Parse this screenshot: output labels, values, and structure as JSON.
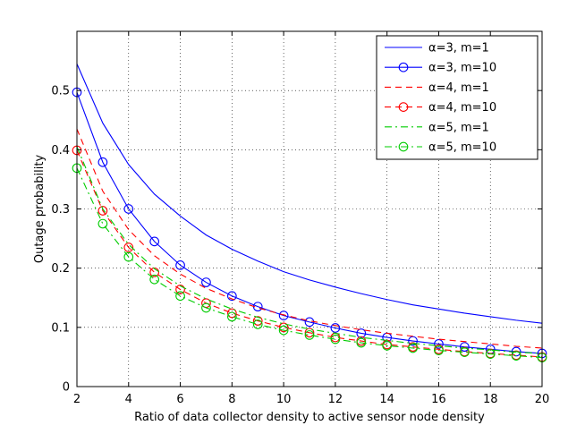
{
  "chart_data": {
    "type": "line",
    "title": "",
    "xlabel": "Ratio of data collector density to active sensor node density",
    "ylabel": "Outage probability",
    "xlim": [
      2,
      20
    ],
    "ylim": [
      0,
      0.6
    ],
    "xticks": [
      "2",
      "4",
      "6",
      "8",
      "10",
      "12",
      "14",
      "16",
      "18",
      "20"
    ],
    "yticks": [
      "0",
      "0.1",
      "0.2",
      "0.3",
      "0.4",
      "0.5"
    ],
    "grid": true,
    "legend_position": "top-right",
    "x": [
      2,
      3,
      4,
      5,
      6,
      7,
      8,
      9,
      10,
      11,
      12,
      13,
      14,
      15,
      16,
      17,
      18,
      19,
      20
    ],
    "series": [
      {
        "name": "α=3, m=1",
        "color": "#0000ff",
        "line": "solid",
        "marker": "none",
        "values": [
          0.545,
          0.445,
          0.375,
          0.325,
          0.288,
          0.256,
          0.232,
          0.212,
          0.194,
          0.18,
          0.168,
          0.157,
          0.147,
          0.138,
          0.131,
          0.124,
          0.118,
          0.112,
          0.107
        ]
      },
      {
        "name": "α=3, m=10",
        "color": "#0000ff",
        "line": "solid",
        "marker": "circle",
        "values": [
          0.497,
          0.379,
          0.3,
          0.245,
          0.205,
          0.176,
          0.153,
          0.135,
          0.12,
          0.109,
          0.099,
          0.09,
          0.083,
          0.077,
          0.072,
          0.067,
          0.063,
          0.059,
          0.056
        ]
      },
      {
        "name": "α=4, m=1",
        "color": "#ff0000",
        "line": "dashed",
        "marker": "none",
        "values": [
          0.435,
          0.33,
          0.265,
          0.221,
          0.19,
          0.166,
          0.148,
          0.133,
          0.121,
          0.111,
          0.103,
          0.096,
          0.09,
          0.085,
          0.08,
          0.076,
          0.072,
          0.068,
          0.065
        ]
      },
      {
        "name": "α=4, m=10",
        "color": "#ff0000",
        "line": "dashed",
        "marker": "circle",
        "values": [
          0.399,
          0.297,
          0.235,
          0.193,
          0.164,
          0.141,
          0.124,
          0.111,
          0.1,
          0.091,
          0.083,
          0.077,
          0.071,
          0.067,
          0.063,
          0.059,
          0.056,
          0.053,
          0.05
        ]
      },
      {
        "name": "α=5, m=1",
        "color": "#00cc00",
        "line": "dashdot",
        "marker": "none",
        "values": [
          0.405,
          0.3,
          0.24,
          0.199,
          0.17,
          0.148,
          0.131,
          0.117,
          0.106,
          0.097,
          0.09,
          0.083,
          0.078,
          0.073,
          0.069,
          0.065,
          0.062,
          0.058,
          0.056
        ]
      },
      {
        "name": "α=5, m=10",
        "color": "#00cc00",
        "line": "dashdot",
        "marker": "circle",
        "values": [
          0.369,
          0.275,
          0.219,
          0.181,
          0.153,
          0.133,
          0.118,
          0.105,
          0.095,
          0.087,
          0.08,
          0.074,
          0.069,
          0.065,
          0.061,
          0.058,
          0.055,
          0.052,
          0.049
        ]
      }
    ]
  }
}
